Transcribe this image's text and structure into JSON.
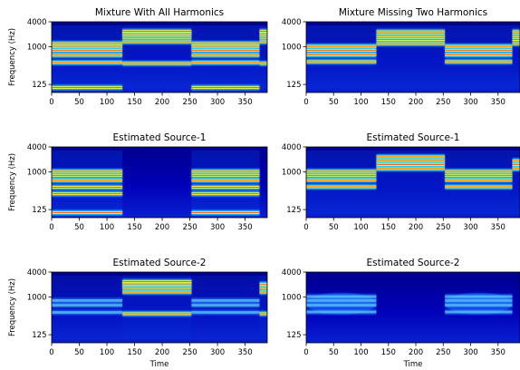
{
  "chart_data": [
    {
      "type": "heatmap",
      "title": "Mixture With All Harmonics",
      "xlabel": "",
      "ylabel": "Frequency (Hz)",
      "xlim": [
        0,
        390
      ],
      "ylim": [
        0,
        4000
      ],
      "yscale": "log",
      "xticks": [
        "0",
        "50",
        "100",
        "150",
        "200",
        "250",
        "300",
        "350"
      ],
      "yticks": [
        "125",
        "1000",
        "4000"
      ],
      "colormap": "jet",
      "segments": [
        {
          "x": [
            0,
            128
          ],
          "harmonics_hz": [
            105,
            420,
            630,
            830,
            1030,
            1200
          ],
          "pattern": "low-set"
        },
        {
          "x": [
            128,
            253
          ],
          "harmonics_hz": [
            400,
            1330,
            1690,
            2050,
            2350
          ],
          "pattern": "high-set"
        },
        {
          "x": [
            253,
            376
          ],
          "harmonics_hz": [
            105,
            420,
            630,
            830,
            1030,
            1200
          ],
          "pattern": "low-set"
        },
        {
          "x": [
            376,
            390
          ],
          "harmonics_hz": [
            400,
            1330,
            1690,
            2050,
            2350
          ],
          "pattern": "high-set"
        }
      ]
    },
    {
      "type": "heatmap",
      "title": "Mixture Missing Two Harmonics",
      "xlabel": "",
      "ylabel": "",
      "xlim": [
        0,
        390
      ],
      "ylim": [
        0,
        4000
      ],
      "yscale": "log",
      "xticks": [
        "0",
        "50",
        "100",
        "150",
        "200",
        "250",
        "300",
        "350"
      ],
      "yticks": [
        "125",
        "1000",
        "4000"
      ],
      "colormap": "jet",
      "segments": [
        {
          "x": [
            0,
            128
          ],
          "harmonics_hz": [
            440,
            640,
            830,
            1030
          ],
          "pattern": "low-set"
        },
        {
          "x": [
            128,
            253
          ],
          "harmonics_hz": [
            1200,
            1500,
            1850,
            2300
          ],
          "pattern": "high-set"
        },
        {
          "x": [
            253,
            376
          ],
          "harmonics_hz": [
            440,
            640,
            830,
            1030
          ],
          "pattern": "low-set"
        },
        {
          "x": [
            376,
            390
          ],
          "harmonics_hz": [
            1200,
            1500,
            1850,
            2300
          ],
          "pattern": "high-set"
        }
      ]
    },
    {
      "type": "heatmap",
      "title": "Estimated Source-1",
      "xlabel": "",
      "ylabel": "Frequency (Hz)",
      "xlim": [
        0,
        390
      ],
      "ylim": [
        0,
        4000
      ],
      "yscale": "log",
      "xticks": [
        "0",
        "50",
        "100",
        "150",
        "200",
        "250",
        "300",
        "350"
      ],
      "yticks": [
        "125",
        "1000",
        "4000"
      ],
      "colormap": "jet",
      "segments": [
        {
          "x": [
            0,
            128
          ],
          "harmonics_hz": [
            105,
            300,
            430,
            630,
            830,
            1030
          ],
          "pattern": "low-set"
        },
        {
          "x": [
            253,
            376
          ],
          "harmonics_hz": [
            105,
            300,
            430,
            630,
            830,
            1030
          ],
          "pattern": "low-set"
        }
      ]
    },
    {
      "type": "heatmap",
      "title": "Estimated Source-1",
      "xlabel": "",
      "ylabel": "",
      "xlim": [
        0,
        390
      ],
      "ylim": [
        0,
        4000
      ],
      "yscale": "log",
      "xticks": [
        "0",
        "50",
        "100",
        "150",
        "200",
        "250",
        "300",
        "350"
      ],
      "yticks": [
        "125",
        "1000",
        "4000"
      ],
      "colormap": "jet",
      "segments": [
        {
          "x": [
            0,
            128
          ],
          "harmonics_hz": [
            440,
            640,
            830,
            1030
          ],
          "pattern": "low-set"
        },
        {
          "x": [
            128,
            253
          ],
          "harmonics_hz": [
            1200,
            1500,
            1850,
            2300
          ],
          "pattern": "high-set"
        },
        {
          "x": [
            253,
            376
          ],
          "harmonics_hz": [
            440,
            640,
            830,
            1030
          ],
          "pattern": "low-set"
        },
        {
          "x": [
            376,
            390
          ],
          "harmonics_hz": [
            1200,
            1500,
            1850
          ],
          "pattern": "high-set"
        }
      ]
    },
    {
      "type": "heatmap",
      "title": "Estimated Source-2",
      "xlabel": "Time",
      "ylabel": "Frequency (Hz)",
      "xlim": [
        0,
        390
      ],
      "ylim": [
        0,
        4000
      ],
      "yscale": "log",
      "xticks": [
        "0",
        "50",
        "100",
        "150",
        "200",
        "250",
        "300",
        "350"
      ],
      "yticks": [
        "125",
        "1000",
        "4000"
      ],
      "colormap": "jet",
      "segments": [
        {
          "x": [
            0,
            128
          ],
          "harmonics_hz": [
            430,
            640,
            830
          ],
          "pattern": "faint"
        },
        {
          "x": [
            128,
            253
          ],
          "harmonics_hz": [
            400,
            1330,
            1690,
            2050,
            2350
          ],
          "pattern": "high-set"
        },
        {
          "x": [
            253,
            376
          ],
          "harmonics_hz": [
            430,
            640,
            830
          ],
          "pattern": "faint"
        },
        {
          "x": [
            376,
            390
          ],
          "harmonics_hz": [
            400,
            1330,
            1690,
            2050
          ],
          "pattern": "high-set"
        }
      ]
    },
    {
      "type": "heatmap",
      "title": "Estimated Source-2",
      "xlabel": "Time",
      "ylabel": "",
      "xlim": [
        0,
        390
      ],
      "ylim": [
        0,
        4000
      ],
      "yscale": "log",
      "xticks": [
        "0",
        "50",
        "100",
        "150",
        "200",
        "250",
        "300",
        "350"
      ],
      "yticks": [
        "125",
        "1000",
        "4000"
      ],
      "colormap": "jet",
      "segments": [
        {
          "x": [
            0,
            128
          ],
          "harmonics_hz": [
            440,
            640,
            830,
            1030
          ],
          "pattern": "blob"
        },
        {
          "x": [
            253,
            376
          ],
          "harmonics_hz": [
            440,
            640,
            830,
            1030
          ],
          "pattern": "blob"
        }
      ]
    }
  ]
}
